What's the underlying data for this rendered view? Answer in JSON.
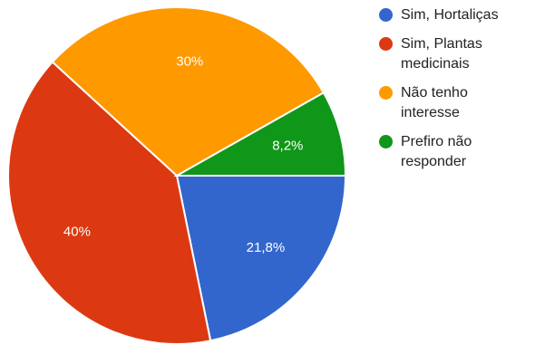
{
  "chart_data": {
    "type": "pie",
    "title": "",
    "slices": [
      {
        "label": "Sim, Hortaliças",
        "value": 21.8,
        "value_label": "21,8%",
        "color": "#3366cc"
      },
      {
        "label": "Sim, Plantas medicinais",
        "value": 40,
        "value_label": "40%",
        "color": "#dc3912"
      },
      {
        "label": "Não tenho interesse",
        "value": 30,
        "value_label": "30%",
        "color": "#ff9900"
      },
      {
        "label": "Prefiro não responder",
        "value": 8.2,
        "value_label": "8,2%",
        "color": "#109618"
      }
    ],
    "start": "3 o'clock, clockwise",
    "legend_position": "right"
  }
}
